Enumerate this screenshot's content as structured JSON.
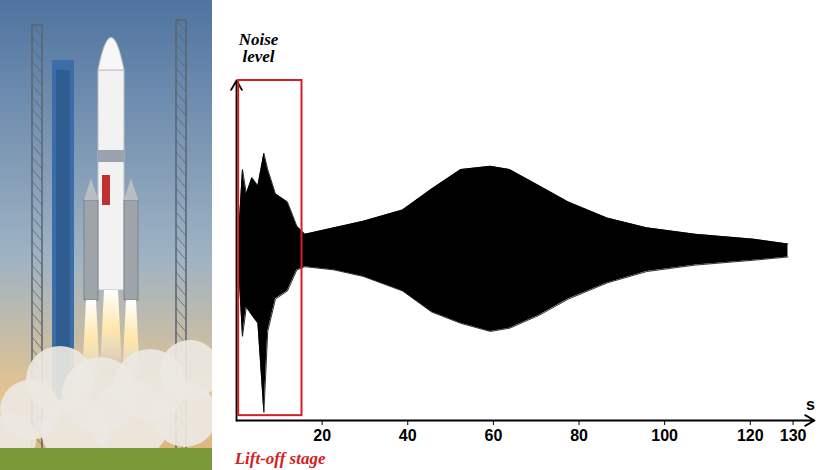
{
  "chart_data": {
    "type": "area",
    "y_label": "Noise level",
    "x_label": "s",
    "x": [
      0.5,
      1.4,
      2.3,
      3.6,
      5.0,
      6.4,
      7.3,
      9.1,
      11.9,
      14.1,
      16.0,
      22.8,
      29.6,
      38.8,
      45.6,
      52.4,
      59.3,
      63.8,
      70.7,
      77.5,
      86.6,
      95.8,
      107.2,
      120.8,
      128.8
    ],
    "envelope": {
      "upper": [
        0.1,
        0.5,
        0.35,
        0.45,
        0.4,
        0.6,
        0.5,
        0.35,
        0.3,
        0.15,
        0.1,
        0.14,
        0.18,
        0.25,
        0.38,
        0.5,
        0.52,
        0.5,
        0.4,
        0.3,
        0.2,
        0.14,
        0.1,
        0.07,
        0.04
      ],
      "lower": [
        -0.1,
        -0.53,
        -0.35,
        -0.4,
        -0.45,
        -1.0,
        -0.5,
        -0.3,
        -0.25,
        -0.12,
        -0.1,
        -0.12,
        -0.16,
        -0.25,
        -0.38,
        -0.45,
        -0.5,
        -0.48,
        -0.4,
        -0.3,
        -0.2,
        -0.13,
        -0.09,
        -0.06,
        -0.04
      ]
    },
    "color": "#000000",
    "xlim": [
      0,
      135
    ],
    "xticks": [
      20,
      40,
      60,
      80,
      100,
      120,
      130
    ],
    "ylim": [
      -1.05,
      1.05
    ],
    "tick_labels": "x",
    "annotations": [
      {
        "text": "Lift-off stage",
        "x_range": [
          0.5,
          15.3
        ],
        "y_range": [
          -1.02,
          1.05
        ],
        "color": "#d42020"
      }
    ]
  }
}
